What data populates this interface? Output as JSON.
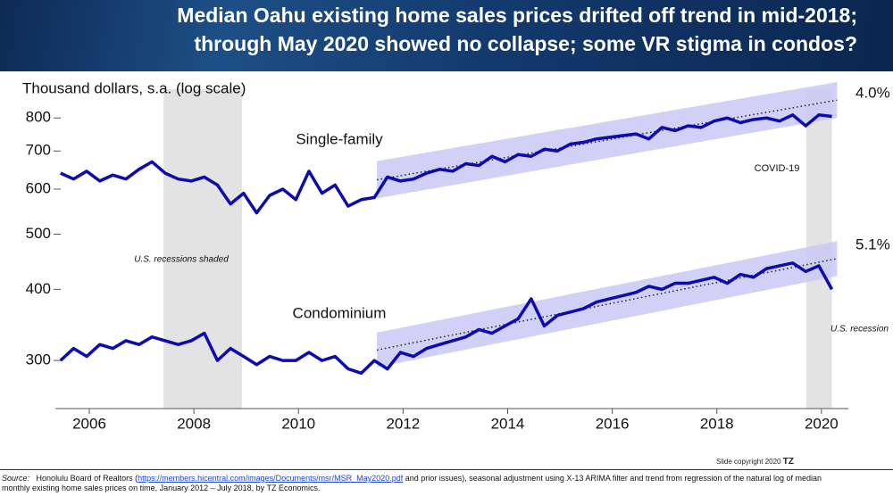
{
  "header": {
    "title": [
      "Median Oahu existing home sales prices drifted off trend in mid-2018;",
      "through May 2020 showed no collapse; some VR stigma in condos?"
    ]
  },
  "chart_data": {
    "type": "line",
    "y_label": "Thousand dollars, s.a. (log scale)",
    "log_scale": true,
    "x": [
      2005.45,
      2005.7,
      2005.95,
      2006.2,
      2006.45,
      2006.7,
      2006.95,
      2007.2,
      2007.45,
      2007.7,
      2007.95,
      2008.2,
      2008.45,
      2008.7,
      2008.95,
      2009.2,
      2009.45,
      2009.7,
      2009.95,
      2010.2,
      2010.45,
      2010.7,
      2010.95,
      2011.2,
      2011.45,
      2011.7,
      2011.95,
      2012.2,
      2012.45,
      2012.7,
      2012.95,
      2013.2,
      2013.45,
      2013.7,
      2013.95,
      2014.2,
      2014.45,
      2014.7,
      2014.95,
      2015.2,
      2015.45,
      2015.7,
      2015.95,
      2016.2,
      2016.45,
      2016.7,
      2016.95,
      2017.2,
      2017.45,
      2017.7,
      2017.95,
      2018.2,
      2018.45,
      2018.7,
      2018.95,
      2019.2,
      2019.45,
      2019.7,
      2019.95,
      2020.2
    ],
    "xlim": [
      2005.3,
      2020.6
    ],
    "xticks": [
      2006,
      2008,
      2010,
      2012,
      2014,
      2016,
      2018,
      2020
    ],
    "ylim": [
      247,
      925
    ],
    "yticks": [
      300,
      400,
      500,
      600,
      700,
      800
    ],
    "series": [
      {
        "name": "Single-family",
        "color": "#0b0bb0",
        "values": [
          640,
          625,
          645,
          620,
          635,
          625,
          650,
          670,
          640,
          625,
          620,
          630,
          610,
          565,
          590,
          545,
          585,
          600,
          575,
          645,
          590,
          610,
          560,
          575,
          580,
          630,
          620,
          625,
          640,
          650,
          645,
          665,
          660,
          685,
          670,
          690,
          685,
          705,
          700,
          720,
          725,
          735,
          740,
          745,
          750,
          735,
          770,
          760,
          775,
          770,
          790,
          800,
          785,
          795,
          800,
          790,
          810,
          775,
          810,
          805
        ]
      },
      {
        "name": "Condominium",
        "color": "#0b0bb0",
        "values": [
          300,
          315,
          305,
          320,
          315,
          325,
          320,
          330,
          325,
          320,
          325,
          335,
          300,
          315,
          305,
          295,
          305,
          300,
          300,
          310,
          300,
          305,
          290,
          285,
          300,
          290,
          310,
          305,
          315,
          320,
          325,
          330,
          340,
          335,
          345,
          355,
          385,
          345,
          360,
          365,
          370,
          380,
          385,
          390,
          395,
          405,
          400,
          410,
          410,
          415,
          420,
          410,
          425,
          420,
          435,
          440,
          445,
          430,
          440,
          400
        ]
      }
    ],
    "trends": [
      {
        "label": "4.0%",
        "x": [
          2011.5,
          2020.3
        ],
        "values": [
          623,
          860
        ],
        "band_low": [
          578,
          800
        ],
        "band_high": [
          672,
          925
        ]
      },
      {
        "label": "5.1%",
        "x": [
          2011.5,
          2020.3
        ],
        "values": [
          313,
          453
        ],
        "band_low": [
          292,
          422
        ],
        "band_high": [
          336,
          486
        ]
      }
    ],
    "shaded": [
      {
        "label": "U.S. recessions shaded",
        "x": [
          2007.42,
          2008.92
        ]
      },
      {
        "label": "U.S. recession",
        "x": [
          2019.71,
          2020.2
        ]
      }
    ],
    "annotation": "COVID-19"
  },
  "footer": {
    "source_label": "Source:",
    "source_pre": "Honolulu Board of Realtors (",
    "source_link": "https://members.hicentral.com/images/Documents/msr/MSR_May2020.pdf",
    "source_post": " and prior issues), seasonal adjustment using X-13 ARIMA filter and trend from regression of the natural log of median monthly existing home sales prices on time, January 2012 – July 2018, by TZ Economics.",
    "copyright": "Slide copyright 2020",
    "logo": "TZ"
  }
}
